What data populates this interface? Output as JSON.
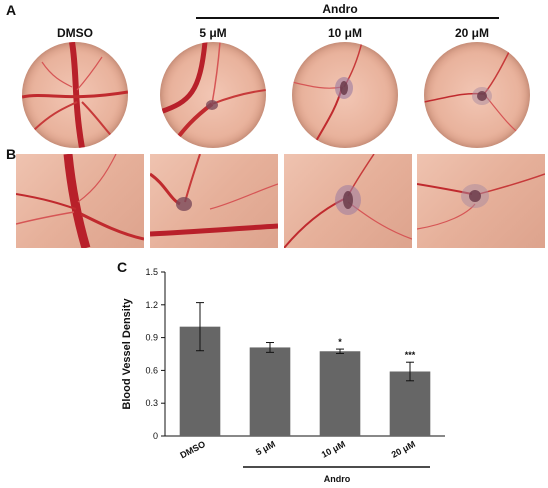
{
  "panels": {
    "a": "A",
    "b": "B",
    "c": "C"
  },
  "header": {
    "group": "Andro",
    "conditions": [
      "DMSO",
      "5 μM",
      "10 μM",
      "20 μM"
    ]
  },
  "colors": {
    "vessel": "#b8202a",
    "bar": "#666666",
    "tissue": "#e9b39d",
    "lesion": "#7a4a5a"
  },
  "chart_data": {
    "type": "bar",
    "categories": [
      "DMSO",
      "5 μM",
      "10 μM",
      "20 μM"
    ],
    "values": [
      1.0,
      0.81,
      0.775,
      0.59
    ],
    "errors": [
      0.22,
      0.045,
      0.02,
      0.085
    ],
    "significance": [
      "",
      "",
      "*",
      "***"
    ],
    "ylabel": "Blood Vessel Density",
    "group_label": "Andro",
    "ylim": [
      0,
      1.5
    ],
    "yticks": [
      "0",
      "0.3",
      "0.6",
      "0.9",
      "1.2",
      "1.5"
    ],
    "grid": false
  }
}
